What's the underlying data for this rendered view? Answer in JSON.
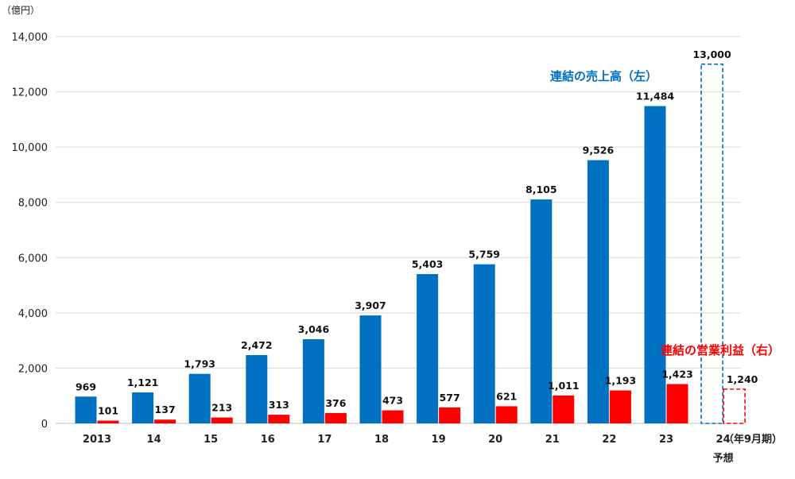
{
  "chart_data": {
    "type": "bar",
    "unit_label": "（億円）",
    "x_unit_label": "（年9月期）",
    "categories": [
      "2013",
      "14",
      "15",
      "16",
      "17",
      "18",
      "19",
      "20",
      "21",
      "22",
      "23",
      "24"
    ],
    "forecast_label": "予想",
    "ylim": [
      0,
      14000
    ],
    "y_ticks": [
      "0",
      "2,000",
      "4,000",
      "6,000",
      "8,000",
      "10,000",
      "12,000",
      "14,000"
    ],
    "grid": true,
    "series": [
      {
        "name": "連結の売上高（左）",
        "color": "#0070c0",
        "values": [
          969,
          1121,
          1793,
          2472,
          3046,
          3907,
          5403,
          5759,
          8105,
          9526,
          11484,
          13000
        ],
        "labels": [
          "969",
          "1,121",
          "1,793",
          "2,472",
          "3,046",
          "3,907",
          "5,403",
          "5,759",
          "8,105",
          "9,526",
          "11,484",
          "13,000"
        ]
      },
      {
        "name": "連結の営業利益（右）",
        "color": "#ff0000",
        "values": [
          101,
          137,
          213,
          313,
          376,
          473,
          577,
          621,
          1011,
          1193,
          1423,
          1240
        ],
        "labels": [
          "101",
          "137",
          "213",
          "313",
          "376",
          "473",
          "577",
          "621",
          "1,011",
          "1,193",
          "1,423",
          "1,240"
        ]
      }
    ]
  }
}
